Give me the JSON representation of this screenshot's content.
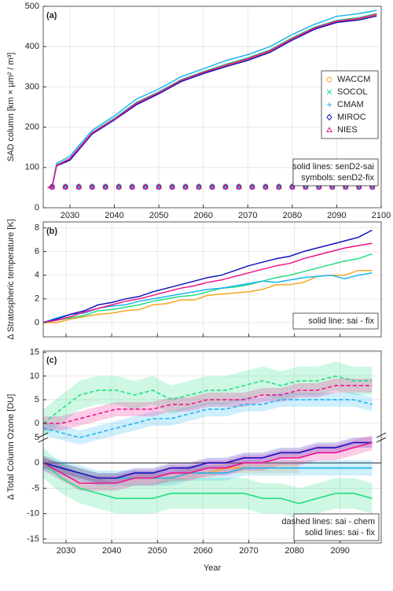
{
  "chart_data": [
    {
      "type": "line",
      "panel_label": "(a)",
      "ylabel": "SAD column [km × µm² / m³]",
      "xlim": [
        2024,
        2100
      ],
      "xticks": [
        2030,
        2040,
        2050,
        2060,
        2070,
        2080,
        2090,
        2100
      ],
      "ylim": [
        0,
        500
      ],
      "yticks": [
        0,
        100,
        200,
        300,
        400,
        500
      ],
      "grid": true,
      "legend": "upper right",
      "annotations": [
        "solid lines: senD2-sai",
        "symbols: senD2-fix"
      ],
      "x": [
        2025,
        2026,
        2027,
        2030,
        2035,
        2040,
        2045,
        2050,
        2055,
        2060,
        2065,
        2070,
        2075,
        2080,
        2085,
        2090,
        2095,
        2099
      ],
      "fix_x": [
        2026,
        2029,
        2032,
        2035,
        2038,
        2041,
        2044,
        2047,
        2050,
        2053,
        2056,
        2059,
        2062,
        2065,
        2068,
        2071,
        2074,
        2077,
        2080,
        2083,
        2086,
        2089,
        2092,
        2095,
        2098
      ],
      "series": [
        {
          "name": "WACCM",
          "color": "#f5a623",
          "marker": "circle",
          "values": [
            50,
            52,
            105,
            120,
            185,
            220,
            258,
            285,
            315,
            335,
            352,
            368,
            388,
            418,
            445,
            462,
            468,
            478
          ],
          "fix_values": [
            52,
            52,
            52,
            52,
            52,
            52,
            52,
            52,
            52,
            52,
            52,
            52,
            52,
            52,
            52,
            52,
            52,
            52,
            52,
            52,
            52,
            52,
            52,
            52,
            52
          ]
        },
        {
          "name": "SOCOL",
          "color": "#22dd80",
          "marker": "x",
          "values": [
            50,
            52,
            106,
            122,
            187,
            222,
            262,
            288,
            318,
            338,
            356,
            372,
            392,
            422,
            448,
            465,
            472,
            482
          ],
          "fix_values": [
            52,
            52,
            52,
            52,
            52,
            52,
            52,
            52,
            52,
            52,
            52,
            52,
            52,
            52,
            52,
            52,
            52,
            52,
            52,
            52,
            52,
            52,
            52,
            52,
            52
          ]
        },
        {
          "name": "CMAM",
          "color": "#1eb4f0",
          "marker": "plus",
          "values": [
            50,
            53,
            110,
            128,
            192,
            228,
            270,
            295,
            325,
            345,
            365,
            380,
            400,
            430,
            455,
            475,
            482,
            490
          ],
          "fix_values": [
            52,
            52,
            52,
            52,
            52,
            52,
            52,
            52,
            52,
            52,
            52,
            52,
            52,
            52,
            52,
            52,
            52,
            52,
            52,
            52,
            52,
            52,
            52,
            52,
            52
          ]
        },
        {
          "name": "MIROC",
          "color": "#1212c0",
          "marker": "diamond",
          "values": [
            50,
            52,
            104,
            118,
            183,
            218,
            256,
            283,
            313,
            333,
            350,
            366,
            386,
            416,
            443,
            460,
            466,
            476
          ],
          "fix_values": [
            52,
            52,
            52,
            52,
            52,
            52,
            52,
            52,
            52,
            52,
            52,
            52,
            52,
            52,
            52,
            52,
            52,
            52,
            52,
            52,
            52,
            52,
            52,
            52,
            52
          ]
        },
        {
          "name": "NIES",
          "color": "#f0148c",
          "marker": "triangle",
          "values": [
            50,
            52,
            105,
            122,
            186,
            220,
            260,
            286,
            316,
            336,
            354,
            370,
            390,
            420,
            446,
            463,
            470,
            480
          ],
          "fix_values": [
            52,
            52,
            52,
            52,
            52,
            52,
            52,
            52,
            52,
            52,
            52,
            52,
            52,
            52,
            52,
            52,
            52,
            52,
            52,
            52,
            52,
            52,
            52,
            52,
            52
          ]
        }
      ]
    },
    {
      "type": "line",
      "panel_label": "(b)",
      "ylabel": "Δ Stratospheric temperature [K]",
      "xlim": [
        2025,
        2099
      ],
      "xticks": [
        2030,
        2040,
        2050,
        2060,
        2070,
        2080,
        2090
      ],
      "ylim": [
        -1.2,
        8.5
      ],
      "yticks": [
        0,
        2,
        4,
        6,
        8
      ],
      "grid": true,
      "annotations": [
        "solid line: sai - fix"
      ],
      "x": [
        2025,
        2028,
        2031,
        2034,
        2037,
        2040,
        2043,
        2046,
        2049,
        2052,
        2055,
        2058,
        2061,
        2064,
        2067,
        2070,
        2073,
        2076,
        2079,
        2082,
        2085,
        2088,
        2091,
        2094,
        2097
      ],
      "series": [
        {
          "color": "#f5a623",
          "values": [
            0,
            0,
            0.3,
            0.5,
            0.7,
            0.8,
            1.0,
            1.1,
            1.5,
            1.6,
            1.9,
            1.9,
            2.3,
            2.4,
            2.5,
            2.6,
            2.8,
            3.2,
            3.2,
            3.4,
            3.9,
            4.0,
            4.0,
            4.4,
            4.4
          ]
        },
        {
          "color": "#22dd80",
          "values": [
            0,
            0.2,
            0.4,
            0.6,
            1.0,
            1.1,
            1.3,
            1.5,
            1.8,
            2.0,
            2.2,
            2.3,
            2.6,
            2.9,
            3.0,
            3.2,
            3.5,
            3.8,
            4.0,
            4.3,
            4.6,
            4.9,
            5.2,
            5.4,
            5.8
          ]
        },
        {
          "color": "#1eb4f0",
          "values": [
            0,
            0.4,
            0.7,
            0.8,
            1.2,
            1.4,
            1.5,
            1.8,
            2.0,
            2.2,
            2.4,
            2.6,
            2.8,
            2.9,
            3.1,
            3.3,
            3.5,
            3.4,
            3.6,
            3.8,
            3.9,
            4.0,
            3.7,
            4.0,
            4.2
          ]
        },
        {
          "color": "#1212c0",
          "values": [
            0,
            0.3,
            0.7,
            1.0,
            1.5,
            1.7,
            2.0,
            2.2,
            2.6,
            2.9,
            3.2,
            3.5,
            3.8,
            4.0,
            4.4,
            4.8,
            5.1,
            5.4,
            5.6,
            6.0,
            6.3,
            6.6,
            6.9,
            7.2,
            7.8
          ]
        },
        {
          "color": "#f0148c",
          "values": [
            0,
            0.2,
            0.5,
            0.9,
            1.2,
            1.5,
            1.8,
            2.0,
            2.3,
            2.6,
            2.9,
            3.1,
            3.4,
            3.6,
            3.9,
            4.2,
            4.5,
            4.8,
            5.0,
            5.4,
            5.7,
            6.0,
            6.3,
            6.5,
            6.7
          ]
        }
      ]
    },
    {
      "type": "line",
      "panel_label": "(c)",
      "ylabel": "Δ Total Column Ozone [DU]",
      "xlabel": "Year",
      "xlim": [
        2025,
        2099
      ],
      "xticks": [
        2030,
        2040,
        2050,
        2060,
        2070,
        2080,
        2090
      ],
      "grid": true,
      "zero_line": true,
      "upper_axis": {
        "ylim": [
          -3,
          15.3
        ],
        "yticks": [
          0,
          5,
          10,
          15
        ]
      },
      "lower_axis": {
        "ylim": [
          -15.8,
          5
        ],
        "yticks": [
          -15,
          -10,
          -5,
          0,
          5
        ]
      },
      "annotations": [
        "dashed lines: sai - chem",
        "solid lines: sai - fix"
      ],
      "x": [
        2025,
        2029,
        2033,
        2037,
        2041,
        2045,
        2049,
        2053,
        2057,
        2061,
        2065,
        2069,
        2073,
        2077,
        2081,
        2085,
        2089,
        2093,
        2097
      ],
      "series": [
        {
          "color": "#f5a623",
          "spread": 1,
          "values": [
            0,
            -1,
            -2,
            -3,
            -3,
            -3,
            -3,
            -3,
            -2,
            -2,
            -1,
            -1,
            -1,
            -1,
            -1,
            null,
            null,
            null,
            null
          ]
        },
        {
          "color": "#22dd80",
          "spread": 3,
          "values": [
            0,
            -3,
            -5,
            -6,
            -7,
            -7,
            -7,
            -6,
            -6,
            -6,
            -6,
            -6,
            -7,
            -7,
            -8,
            -7,
            -6,
            -6,
            -7
          ],
          "chem_spread": 3,
          "chem_values": [
            0,
            3,
            6,
            7,
            7,
            6,
            7,
            5,
            6,
            7,
            7,
            8,
            9,
            8,
            9,
            9,
            10,
            9,
            9
          ]
        },
        {
          "color": "#1eb4f0",
          "spread": 1.5,
          "values": [
            0,
            -1,
            -2,
            -3,
            -3,
            -3,
            -3,
            -3,
            -2,
            -2,
            -2,
            -1,
            -1,
            -1,
            -1,
            -1,
            -1,
            -1,
            -1
          ],
          "chem_spread": 1.5,
          "chem_values": [
            -1,
            -2,
            -3,
            -2,
            -1,
            0,
            1,
            1,
            2,
            3,
            3,
            4,
            4,
            5,
            5,
            5,
            5,
            5,
            4
          ]
        },
        {
          "color": "#1212c0",
          "spread": 1,
          "values": [
            0,
            -1,
            -2,
            -3,
            -3,
            -2,
            -2,
            -1,
            -1,
            0,
            0,
            1,
            1,
            2,
            2,
            3,
            3,
            4,
            4
          ]
        },
        {
          "color": "#f0148c",
          "spread": 1.5,
          "values": [
            0,
            -2,
            -4,
            -4,
            -4,
            -3,
            -3,
            -2,
            -2,
            -1,
            -1,
            0,
            0,
            1,
            1,
            2,
            2,
            3,
            4
          ],
          "chem_spread": 1.5,
          "chem_values": [
            0,
            0,
            1,
            2,
            3,
            3,
            3,
            4,
            4,
            5,
            5,
            5,
            6,
            6,
            7,
            7,
            8,
            8,
            8
          ]
        }
      ]
    }
  ]
}
